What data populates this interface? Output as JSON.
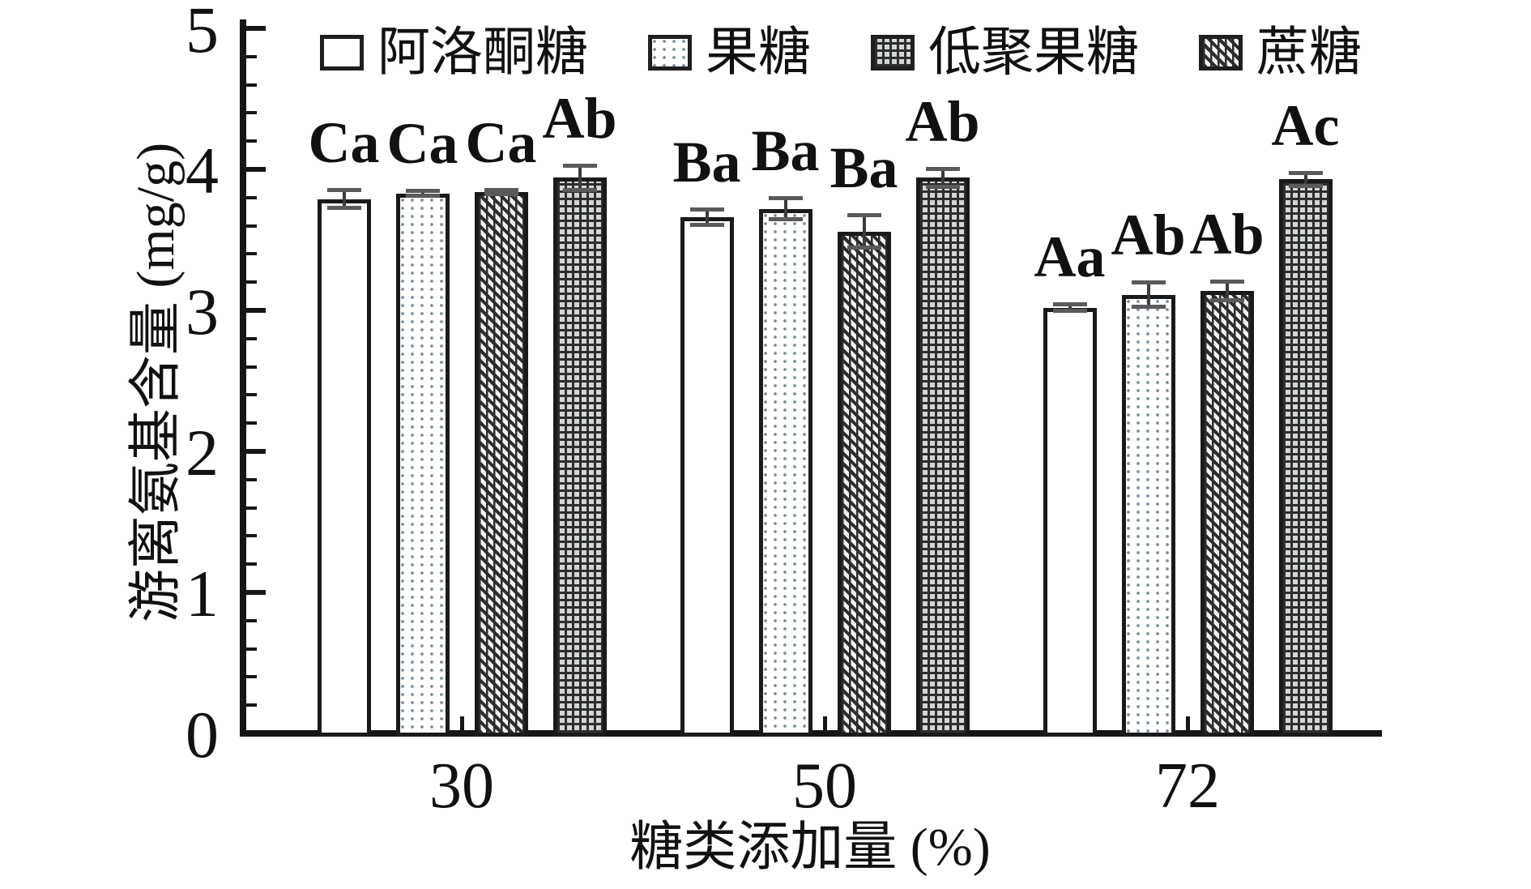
{
  "chart_data": {
    "type": "bar",
    "title": "",
    "xlabel": "糖类添加量 (%)",
    "ylabel": "游离氨基含量 (mg/g)",
    "ylim": [
      0,
      5
    ],
    "yticks": [
      0,
      1,
      2,
      3,
      4,
      5
    ],
    "minor_tick_step": 0.2,
    "grid": "off",
    "legend_position": "top",
    "categories": [
      "30",
      "50",
      "72"
    ],
    "series": [
      {
        "name": "阿洛酮糖",
        "pattern": "white",
        "values": [
          3.79,
          3.66,
          3.02
        ],
        "errors": [
          0.08,
          0.07,
          0.04
        ],
        "sig_labels": [
          "Ca",
          "Ba",
          "Aa"
        ]
      },
      {
        "name": "果糖",
        "pattern": "dots",
        "values": [
          3.83,
          3.72,
          3.11
        ],
        "errors": [
          0.03,
          0.09,
          0.1
        ],
        "sig_labels": [
          "Ca",
          "Ba",
          "Ab"
        ]
      },
      {
        "name": "低聚果糖",
        "pattern": "grid",
        "values": [
          3.94,
          3.94,
          3.93
        ],
        "errors": [
          0.1,
          0.08,
          0.06
        ],
        "sig_labels": [
          "Ab",
          "Ab",
          "Ac"
        ]
      },
      {
        "name": "蔗糖",
        "pattern": "diagonal",
        "values": [
          3.84,
          3.56,
          3.14
        ],
        "errors": [
          0.03,
          0.13,
          0.08
        ],
        "sig_labels": [
          "Ca",
          "Ba",
          "Ab"
        ]
      }
    ],
    "bar_draw_order": [
      0,
      1,
      3,
      2
    ],
    "colors": {
      "axis": "#161616",
      "bar_border": "#1a1a1a",
      "dark_fill": "#2d2d2d",
      "dot_fill": "#7e8fa0",
      "error_bar": "#3c3c3c"
    }
  }
}
